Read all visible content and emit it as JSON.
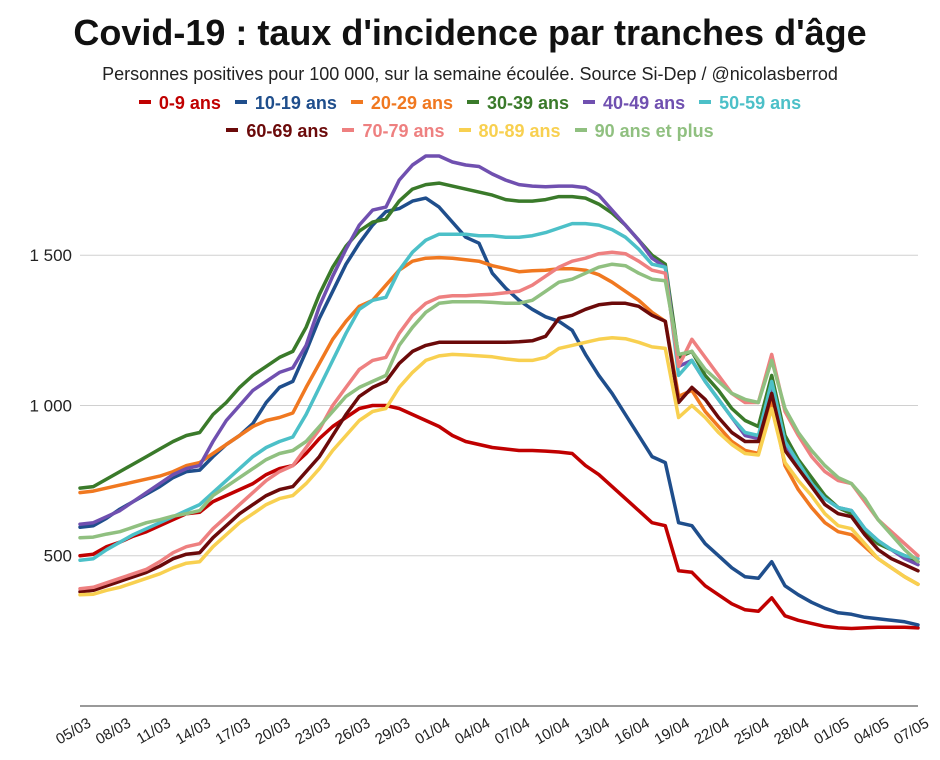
{
  "chart_data": {
    "type": "line",
    "title": "Covid-19 : taux d'incidence par tranches d'âge",
    "subtitle": "Personnes positives pour 100 000, sur la semaine écoulée. Source Si-Dep / @nicolasberrod",
    "xlabel": "",
    "ylabel": "",
    "ylim": [
      0,
      1850
    ],
    "yticks": [
      500,
      1000,
      1500
    ],
    "ytick_labels": [
      "500",
      "1 000",
      "1 500"
    ],
    "grid": true,
    "legend_position": "top",
    "x": [
      "05/03",
      "06/03",
      "07/03",
      "08/03",
      "09/03",
      "10/03",
      "11/03",
      "12/03",
      "13/03",
      "14/03",
      "15/03",
      "16/03",
      "17/03",
      "18/03",
      "19/03",
      "20/03",
      "21/03",
      "22/03",
      "23/03",
      "24/03",
      "25/03",
      "26/03",
      "27/03",
      "28/03",
      "29/03",
      "30/03",
      "31/03",
      "01/04",
      "02/04",
      "03/04",
      "04/04",
      "05/04",
      "06/04",
      "07/04",
      "08/04",
      "09/04",
      "10/04",
      "11/04",
      "12/04",
      "13/04",
      "14/04",
      "15/04",
      "16/04",
      "17/04",
      "18/04",
      "19/04",
      "20/04",
      "21/04",
      "22/04",
      "23/04",
      "24/04",
      "25/04",
      "26/04",
      "27/04",
      "28/04",
      "29/04",
      "30/04",
      "01/05",
      "02/05",
      "03/05",
      "04/05",
      "05/05",
      "06/05",
      "07/05"
    ],
    "xtick_labels": [
      "05/03",
      "08/03",
      "11/03",
      "14/03",
      "17/03",
      "20/03",
      "23/03",
      "26/03",
      "29/03",
      "01/04",
      "04/04",
      "07/04",
      "10/04",
      "13/04",
      "16/04",
      "19/04",
      "22/04",
      "25/04",
      "28/04",
      "01/05",
      "04/05",
      "07/05"
    ],
    "series": [
      {
        "name": "0-9 ans",
        "color": "#c00000",
        "values": [
          500,
          505,
          530,
          545,
          565,
          580,
          600,
          620,
          640,
          645,
          680,
          700,
          720,
          740,
          770,
          790,
          800,
          840,
          890,
          930,
          960,
          990,
          1000,
          1000,
          990,
          970,
          950,
          930,
          900,
          880,
          870,
          860,
          855,
          850,
          850,
          848,
          845,
          840,
          800,
          770,
          730,
          690,
          650,
          610,
          600,
          450,
          445,
          400,
          370,
          340,
          320,
          315,
          360,
          300,
          285,
          275,
          265,
          260,
          258,
          260,
          262,
          262,
          262,
          260
        ]
      },
      {
        "name": "10-19 ans",
        "color": "#1f4e8c",
        "values": [
          595,
          600,
          625,
          655,
          680,
          705,
          730,
          760,
          780,
          785,
          830,
          870,
          900,
          940,
          1010,
          1060,
          1080,
          1180,
          1290,
          1380,
          1470,
          1540,
          1600,
          1645,
          1655,
          1680,
          1690,
          1660,
          1610,
          1560,
          1540,
          1440,
          1390,
          1350,
          1320,
          1295,
          1280,
          1250,
          1170,
          1100,
          1040,
          970,
          900,
          830,
          810,
          610,
          600,
          540,
          500,
          460,
          430,
          425,
          480,
          400,
          370,
          345,
          325,
          310,
          305,
          295,
          290,
          285,
          280,
          270
        ]
      },
      {
        "name": "20-29 ans",
        "color": "#f07820",
        "values": [
          710,
          715,
          725,
          735,
          745,
          755,
          765,
          780,
          800,
          810,
          840,
          870,
          900,
          930,
          950,
          960,
          975,
          1060,
          1140,
          1220,
          1280,
          1330,
          1350,
          1400,
          1450,
          1480,
          1490,
          1492,
          1490,
          1485,
          1480,
          1465,
          1455,
          1445,
          1448,
          1450,
          1455,
          1455,
          1450,
          1435,
          1410,
          1380,
          1350,
          1310,
          1280,
          1030,
          1050,
          980,
          930,
          880,
          850,
          840,
          1020,
          800,
          720,
          660,
          610,
          580,
          570,
          530,
          490,
          460,
          430,
          405
        ]
      },
      {
        "name": "30-39 ans",
        "color": "#3a7a2a",
        "values": [
          725,
          730,
          755,
          780,
          805,
          830,
          855,
          880,
          900,
          910,
          970,
          1010,
          1060,
          1100,
          1130,
          1160,
          1180,
          1260,
          1370,
          1460,
          1530,
          1580,
          1610,
          1620,
          1680,
          1720,
          1735,
          1740,
          1730,
          1720,
          1710,
          1700,
          1685,
          1680,
          1680,
          1685,
          1695,
          1695,
          1690,
          1670,
          1640,
          1600,
          1550,
          1500,
          1470,
          1160,
          1180,
          1100,
          1050,
          990,
          950,
          930,
          1100,
          900,
          820,
          760,
          700,
          660,
          640,
          580,
          540,
          520,
          500,
          480
        ]
      },
      {
        "name": "40-49 ans",
        "color": "#7050b0",
        "values": [
          605,
          610,
          630,
          650,
          680,
          710,
          740,
          770,
          790,
          800,
          880,
          950,
          1000,
          1050,
          1080,
          1110,
          1125,
          1200,
          1330,
          1430,
          1520,
          1600,
          1650,
          1660,
          1750,
          1800,
          1830,
          1830,
          1810,
          1800,
          1795,
          1770,
          1750,
          1735,
          1730,
          1728,
          1730,
          1730,
          1725,
          1700,
          1650,
          1600,
          1550,
          1490,
          1460,
          1130,
          1150,
          1080,
          1020,
          960,
          900,
          890,
          1060,
          870,
          800,
          740,
          690,
          660,
          650,
          590,
          550,
          520,
          490,
          470
        ]
      },
      {
        "name": "50-59 ans",
        "color": "#4cc0c8",
        "values": [
          485,
          490,
          520,
          545,
          570,
          590,
          610,
          630,
          650,
          670,
          710,
          750,
          790,
          830,
          860,
          880,
          895,
          970,
          1060,
          1150,
          1240,
          1320,
          1350,
          1360,
          1450,
          1510,
          1550,
          1570,
          1570,
          1570,
          1565,
          1565,
          1560,
          1560,
          1565,
          1575,
          1590,
          1605,
          1605,
          1600,
          1585,
          1560,
          1520,
          1470,
          1460,
          1100,
          1150,
          1080,
          1020,
          960,
          910,
          900,
          1080,
          880,
          810,
          740,
          690,
          660,
          650,
          590,
          550,
          520,
          500,
          490
        ]
      },
      {
        "name": "60-69 ans",
        "color": "#6b0a0a",
        "values": [
          380,
          385,
          400,
          415,
          430,
          445,
          465,
          490,
          505,
          510,
          560,
          600,
          640,
          670,
          700,
          720,
          730,
          780,
          830,
          900,
          970,
          1030,
          1060,
          1080,
          1140,
          1180,
          1200,
          1210,
          1210,
          1210,
          1210,
          1210,
          1210,
          1212,
          1215,
          1230,
          1290,
          1300,
          1320,
          1335,
          1340,
          1340,
          1330,
          1300,
          1280,
          1010,
          1060,
          1020,
          960,
          910,
          880,
          880,
          1040,
          850,
          790,
          730,
          670,
          640,
          630,
          570,
          520,
          490,
          470,
          450
        ]
      },
      {
        "name": "70-79 ans",
        "color": "#ee8080",
        "values": [
          390,
          395,
          410,
          425,
          440,
          455,
          480,
          510,
          530,
          540,
          590,
          630,
          670,
          710,
          750,
          780,
          800,
          860,
          920,
          1000,
          1060,
          1120,
          1150,
          1160,
          1240,
          1300,
          1340,
          1360,
          1365,
          1365,
          1368,
          1370,
          1375,
          1380,
          1400,
          1430,
          1460,
          1480,
          1490,
          1505,
          1510,
          1505,
          1480,
          1450,
          1440,
          1130,
          1220,
          1160,
          1100,
          1040,
          1010,
          1010,
          1170,
          980,
          900,
          830,
          780,
          750,
          740,
          680,
          620,
          580,
          540,
          500
        ]
      },
      {
        "name": "80-89 ans",
        "color": "#f8d050",
        "values": [
          370,
          372,
          385,
          395,
          410,
          425,
          440,
          460,
          475,
          480,
          530,
          570,
          610,
          640,
          670,
          690,
          700,
          740,
          790,
          850,
          900,
          950,
          980,
          990,
          1060,
          1110,
          1150,
          1165,
          1170,
          1168,
          1165,
          1162,
          1155,
          1150,
          1150,
          1160,
          1190,
          1200,
          1210,
          1220,
          1225,
          1222,
          1210,
          1195,
          1190,
          960,
          1000,
          960,
          910,
          870,
          840,
          835,
          990,
          810,
          750,
          700,
          640,
          600,
          590,
          540,
          490,
          460,
          430,
          405
        ]
      },
      {
        "name": "90 ans et plus",
        "color": "#90c080",
        "values": [
          560,
          562,
          572,
          580,
          595,
          610,
          620,
          632,
          640,
          650,
          700,
          730,
          760,
          790,
          820,
          840,
          850,
          880,
          930,
          980,
          1030,
          1060,
          1080,
          1100,
          1200,
          1260,
          1310,
          1340,
          1345,
          1345,
          1345,
          1343,
          1340,
          1340,
          1350,
          1380,
          1410,
          1420,
          1440,
          1460,
          1470,
          1465,
          1440,
          1420,
          1415,
          1170,
          1180,
          1120,
          1080,
          1040,
          1020,
          1010,
          1150,
          990,
          910,
          850,
          800,
          760,
          740,
          690,
          620,
          570,
          520,
          480
        ]
      }
    ]
  }
}
